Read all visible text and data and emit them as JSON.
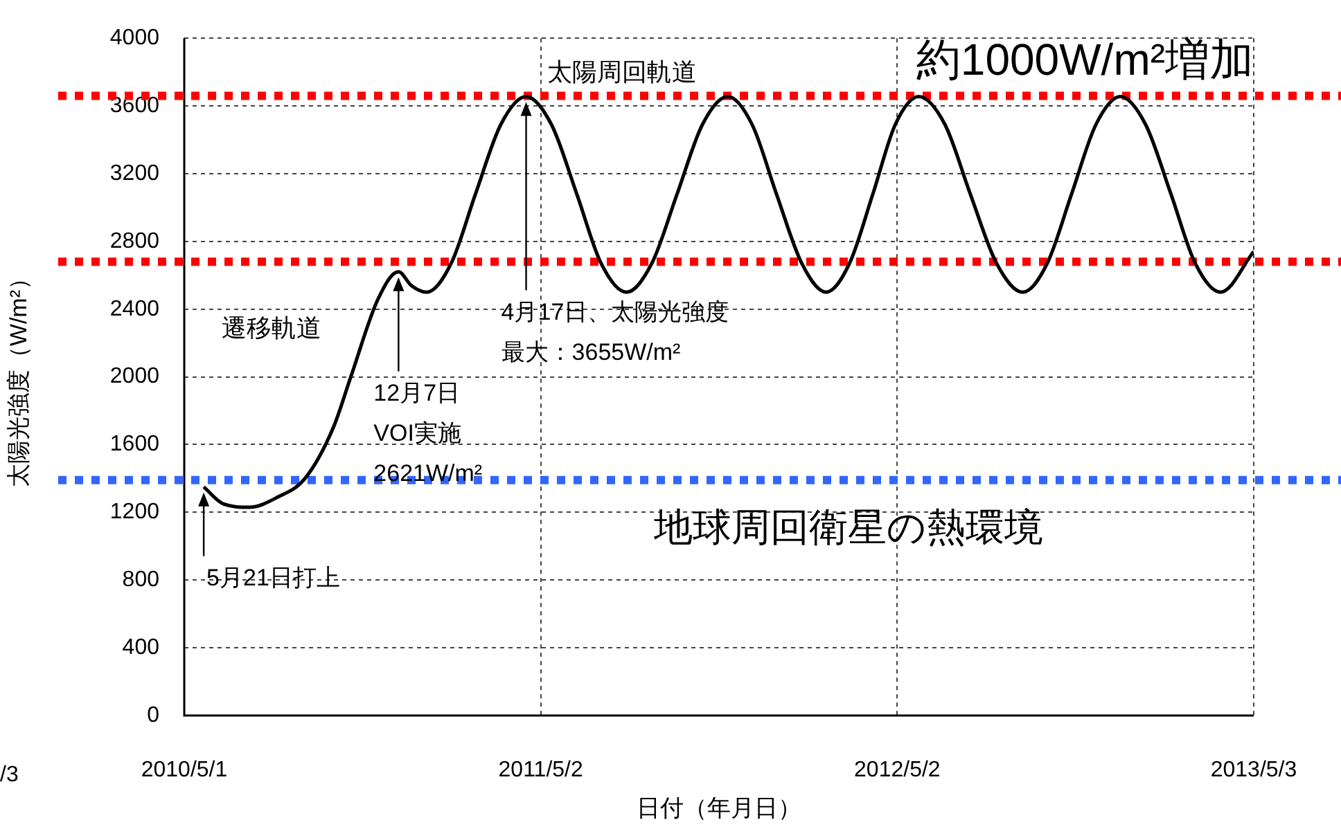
{
  "chart_data": {
    "type": "line",
    "xlabel": "日付（年月日）",
    "ylabel": "太陽光強度（W/m²）",
    "x": [
      "2010-05-21",
      "2010-06-10",
      "2010-07-07",
      "2010-08-05",
      "2010-09-02",
      "2010-10-01",
      "2010-10-19",
      "2010-11-16",
      "2010-12-07",
      "2010-12-20",
      "2011-01-05",
      "2011-01-30",
      "2011-02-24",
      "2011-03-22",
      "2011-04-17",
      "2011-05-13",
      "2011-06-08",
      "2011-07-03",
      "2011-07-29",
      "2011-08-24",
      "2011-09-19",
      "2011-10-15",
      "2011-11-10",
      "2011-12-05",
      "2011-12-30",
      "2012-01-25",
      "2012-02-19",
      "2012-03-14",
      "2012-04-07",
      "2012-04-30",
      "2012-05-24",
      "2012-06-20",
      "2012-07-16",
      "2012-08-12",
      "2012-09-08",
      "2012-10-03",
      "2012-10-28",
      "2012-11-22",
      "2012-12-17",
      "2013-01-12",
      "2013-02-07",
      "2013-03-04",
      "2013-03-30",
      "2013-05-03"
    ],
    "series": [
      {
        "color": "#000000",
        "values": [
          1350,
          1250,
          1230,
          1290,
          1400,
          1700,
          2000,
          2460,
          2621,
          2540,
          2500,
          2670,
          3080,
          3490,
          3655,
          3490,
          3080,
          2670,
          2500,
          2670,
          3080,
          3490,
          3655,
          3490,
          3080,
          2670,
          2500,
          2670,
          3080,
          3490,
          3655,
          3490,
          3080,
          2670,
          2500,
          2670,
          3080,
          3490,
          3655,
          3490,
          3080,
          2670,
          2500,
          2740
        ]
      }
    ],
    "xlim": [
      "2010-05-01",
      "2013-05-03"
    ],
    "xticks": [
      {
        "value": "2010-05-01",
        "label": "2010/5/1"
      },
      {
        "value": "2011-05-02",
        "label": "2011/5/2"
      },
      {
        "value": "2012-05-02",
        "label": "2012/5/2"
      },
      {
        "value": "2013-05-03",
        "label": "2013/5/3"
      }
    ],
    "ylim": [
      0,
      4000
    ],
    "yticks": [
      0,
      400,
      800,
      1200,
      1600,
      2000,
      2400,
      2800,
      3200,
      3600,
      4000
    ],
    "grid": true,
    "legend": false,
    "marker": "none",
    "line_style": "solid",
    "ref_lines": [
      {
        "axis": "y",
        "value": 3660,
        "color": "#ff0000",
        "line_style": "dotted"
      },
      {
        "axis": "y",
        "value": 2680,
        "color": "#ff0000",
        "line_style": "dotted"
      },
      {
        "axis": "y",
        "value": 1390,
        "color": "#3366ff",
        "line_style": "dotted",
        "label": "地球周回衛星の熱環境"
      }
    ],
    "annotations": [
      {
        "text": "5月21日打上",
        "x": "2010-05-21",
        "y": 1350
      },
      {
        "text": "12月7日VOI実施2621W/m²",
        "x": "2010-12-07",
        "y": 2621
      },
      {
        "text": "4月17日、太陽光強度最大：3655W/m²",
        "x": "2011-04-17",
        "y": 3655
      },
      "遷移軌道",
      "太陽周回軌道",
      "約1000W/m²増加",
      "/3"
    ]
  }
}
